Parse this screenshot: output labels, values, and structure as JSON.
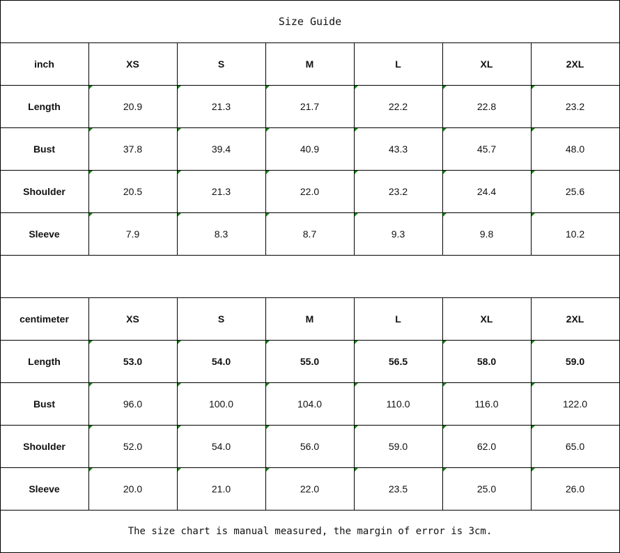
{
  "title": "Size Guide",
  "tables": [
    {
      "unit": "inch",
      "sizes": [
        "XS",
        "S",
        "M",
        "L",
        "XL",
        "2XL"
      ],
      "rows": [
        {
          "label": "Length",
          "values": [
            "20.9",
            "21.3",
            "21.7",
            "22.2",
            "22.8",
            "23.2"
          ]
        },
        {
          "label": "Bust",
          "values": [
            "37.8",
            "39.4",
            "40.9",
            "43.3",
            "45.7",
            "48.0"
          ]
        },
        {
          "label": "Shoulder",
          "values": [
            "20.5",
            "21.3",
            "22.0",
            "23.2",
            "24.4",
            "25.6"
          ]
        },
        {
          "label": "Sleeve",
          "values": [
            "7.9",
            "8.3",
            "8.7",
            "9.3",
            "9.8",
            "10.2"
          ]
        }
      ]
    },
    {
      "unit": "centimeter",
      "sizes": [
        "XS",
        "S",
        "M",
        "L",
        "XL",
        "2XL"
      ],
      "rows": [
        {
          "label": "Length",
          "values": [
            "53.0",
            "54.0",
            "55.0",
            "56.5",
            "58.0",
            "59.0"
          ]
        },
        {
          "label": "Bust",
          "values": [
            "96.0",
            "100.0",
            "104.0",
            "110.0",
            "116.0",
            "122.0"
          ]
        },
        {
          "label": "Shoulder",
          "values": [
            "52.0",
            "54.0",
            "56.0",
            "59.0",
            "62.0",
            "65.0"
          ]
        },
        {
          "label": "Sleeve",
          "values": [
            "20.0",
            "21.0",
            "22.0",
            "23.5",
            "25.0",
            "26.0"
          ]
        }
      ]
    }
  ],
  "note": "The size chart is manual measured, the margin of error is 3cm.",
  "colors": {
    "border": "#000000",
    "error_indicator": "#0a8a0a"
  }
}
